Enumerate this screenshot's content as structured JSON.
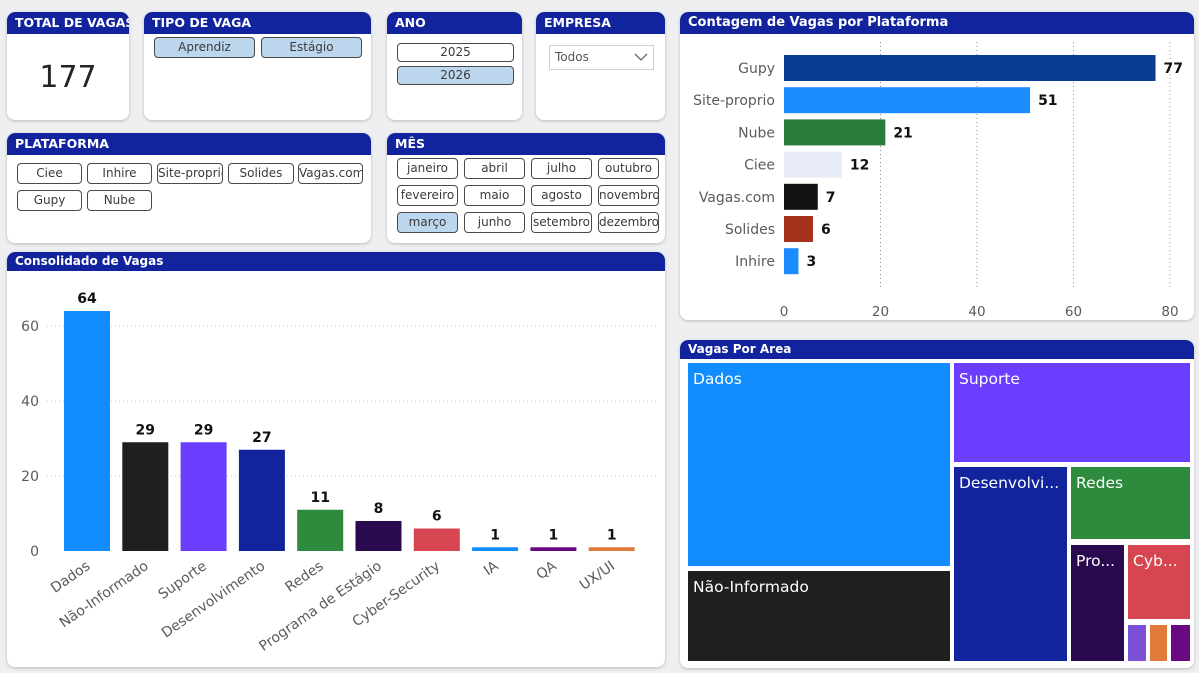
{
  "kpi": {
    "title": "TOTAL DE VAGAS",
    "value": "177"
  },
  "tipo_vaga": {
    "title": "TIPO DE VAGA",
    "options": [
      {
        "label": "Aprendiz",
        "selected": true
      },
      {
        "label": "Estágio",
        "selected": true
      }
    ]
  },
  "ano": {
    "title": "ANO",
    "options": [
      {
        "label": "2025",
        "selected": false
      },
      {
        "label": "2026",
        "selected": true
      }
    ]
  },
  "empresa": {
    "title": "EMPRESA",
    "value": "Todos"
  },
  "plataforma": {
    "title": "PLATAFORMA",
    "options": [
      {
        "label": "Ciee"
      },
      {
        "label": "Inhire"
      },
      {
        "label": "Site-proprio"
      },
      {
        "label": "Solides"
      },
      {
        "label": "Vagas.com"
      },
      {
        "label": "Gupy"
      },
      {
        "label": "Nube"
      }
    ]
  },
  "mes": {
    "title": "MÊS",
    "options": [
      {
        "label": "janeiro",
        "selected": false
      },
      {
        "label": "abril",
        "selected": false
      },
      {
        "label": "julho",
        "selected": false
      },
      {
        "label": "outubro",
        "selected": false
      },
      {
        "label": "fevereiro",
        "selected": false
      },
      {
        "label": "maio",
        "selected": false
      },
      {
        "label": "agosto",
        "selected": false
      },
      {
        "label": "novembro",
        "selected": false
      },
      {
        "label": "março",
        "selected": true
      },
      {
        "label": "junho",
        "selected": false
      },
      {
        "label": "setembro",
        "selected": false
      },
      {
        "label": "dezembro",
        "selected": false
      }
    ]
  },
  "chart_data": [
    {
      "id": "plataforma",
      "type": "bar",
      "orientation": "horizontal",
      "title": "Contagem de Vagas por Plataforma",
      "categories": [
        "Gupy",
        "Site-proprio",
        "Nube",
        "Ciee",
        "Vagas.com",
        "Solides",
        "Inhire"
      ],
      "values": [
        77,
        51,
        21,
        12,
        7,
        6,
        3
      ],
      "colors": [
        "#0a3d91",
        "#1a8cff",
        "#2a7a3b",
        "#e8ecf6",
        "#121212",
        "#a5311a",
        "#1a8cff"
      ],
      "xlim": [
        0,
        80
      ],
      "xticks": [
        0,
        20,
        40,
        60,
        80
      ]
    },
    {
      "id": "consolidado",
      "type": "bar",
      "orientation": "vertical",
      "title": "Consolidado de Vagas",
      "categories": [
        "Dados",
        "Não-Informado",
        "Suporte",
        "Desenvolvimento",
        "Redes",
        "Programa de Estágio",
        "Cyber-Security",
        "IA",
        "QA",
        "UX/UI"
      ],
      "values": [
        64,
        29,
        29,
        27,
        11,
        8,
        6,
        1,
        1,
        1
      ],
      "colors": [
        "#118dff",
        "#1f1f1f",
        "#6b3dff",
        "#12239e",
        "#2e8b3d",
        "#2a0a4f",
        "#d64550",
        "#118dff",
        "#6a0a80",
        "#e07a3a"
      ],
      "ylim": [
        0,
        70
      ],
      "yticks": [
        0,
        20,
        40,
        60
      ]
    },
    {
      "id": "area",
      "type": "treemap",
      "title": "Vagas Por Area",
      "categories": [
        "Dados",
        "Não-Informado",
        "Suporte",
        "Desenvolvimento",
        "Redes",
        "Programa de Estágio",
        "Cyber-Security",
        "IA",
        "QA",
        "UX/UI"
      ],
      "values": [
        64,
        29,
        29,
        27,
        11,
        8,
        6,
        1,
        1,
        1
      ],
      "display_labels": [
        "Dados",
        "Não-Informado",
        "Suporte",
        "Desenvolvi...",
        "Redes",
        "Pro...",
        "Cyb...",
        "",
        "",
        ""
      ],
      "colors": [
        "#118dff",
        "#1f1f1f",
        "#6b3dff",
        "#12239e",
        "#2e8b3d",
        "#2a0a4f",
        "#d64550",
        "#7b4fd6",
        "#e07a3a",
        "#6a0a80"
      ]
    }
  ]
}
